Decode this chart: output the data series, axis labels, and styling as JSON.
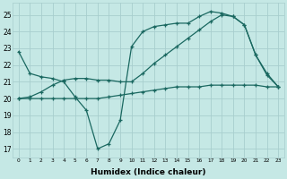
{
  "xlabel": "Humidex (Indice chaleur)",
  "background_color": "#c5e8e5",
  "grid_color": "#a8cece",
  "line_color": "#1a6860",
  "xlim": [
    -0.5,
    23.5
  ],
  "ylim": [
    16.5,
    25.7
  ],
  "yticks": [
    17,
    18,
    19,
    20,
    21,
    22,
    23,
    24,
    25
  ],
  "xticks": [
    0,
    1,
    2,
    3,
    4,
    5,
    6,
    7,
    8,
    9,
    10,
    11,
    12,
    13,
    14,
    15,
    16,
    17,
    18,
    19,
    20,
    21,
    22,
    23
  ],
  "series": [
    {
      "x": [
        0,
        1,
        2,
        3,
        4,
        5,
        6,
        7,
        8,
        9,
        10,
        11,
        12,
        13,
        14,
        15,
        16,
        17,
        18,
        19,
        20,
        21,
        22,
        23
      ],
      "y": [
        22.8,
        21.5,
        21.3,
        21.2,
        21.0,
        20.1,
        19.3,
        17.0,
        17.3,
        18.7,
        23.1,
        24.0,
        24.3,
        24.4,
        24.5,
        24.5,
        24.9,
        25.2,
        25.1,
        24.9,
        24.4,
        22.6,
        21.4,
        20.7
      ]
    },
    {
      "x": [
        0,
        1,
        2,
        3,
        4,
        5,
        6,
        7,
        8,
        9,
        10,
        11,
        12,
        13,
        14,
        15,
        16,
        17,
        18,
        19,
        20,
        21,
        22,
        23
      ],
      "y": [
        20.0,
        20.0,
        20.0,
        20.0,
        20.0,
        20.0,
        20.0,
        20.0,
        20.1,
        20.2,
        20.3,
        20.4,
        20.5,
        20.6,
        20.7,
        20.7,
        20.7,
        20.8,
        20.8,
        20.8,
        20.8,
        20.8,
        20.7,
        20.7
      ]
    },
    {
      "x": [
        0,
        1,
        2,
        3,
        4,
        5,
        6,
        7,
        8,
        9,
        10,
        11,
        12,
        13,
        14,
        15,
        16,
        17,
        18,
        19,
        20,
        21,
        22,
        23
      ],
      "y": [
        20.0,
        20.1,
        20.4,
        20.8,
        21.1,
        21.2,
        21.2,
        21.1,
        21.1,
        21.0,
        21.0,
        21.5,
        22.1,
        22.6,
        23.1,
        23.6,
        24.1,
        24.6,
        25.0,
        24.9,
        24.4,
        22.6,
        21.5,
        20.7
      ]
    }
  ]
}
